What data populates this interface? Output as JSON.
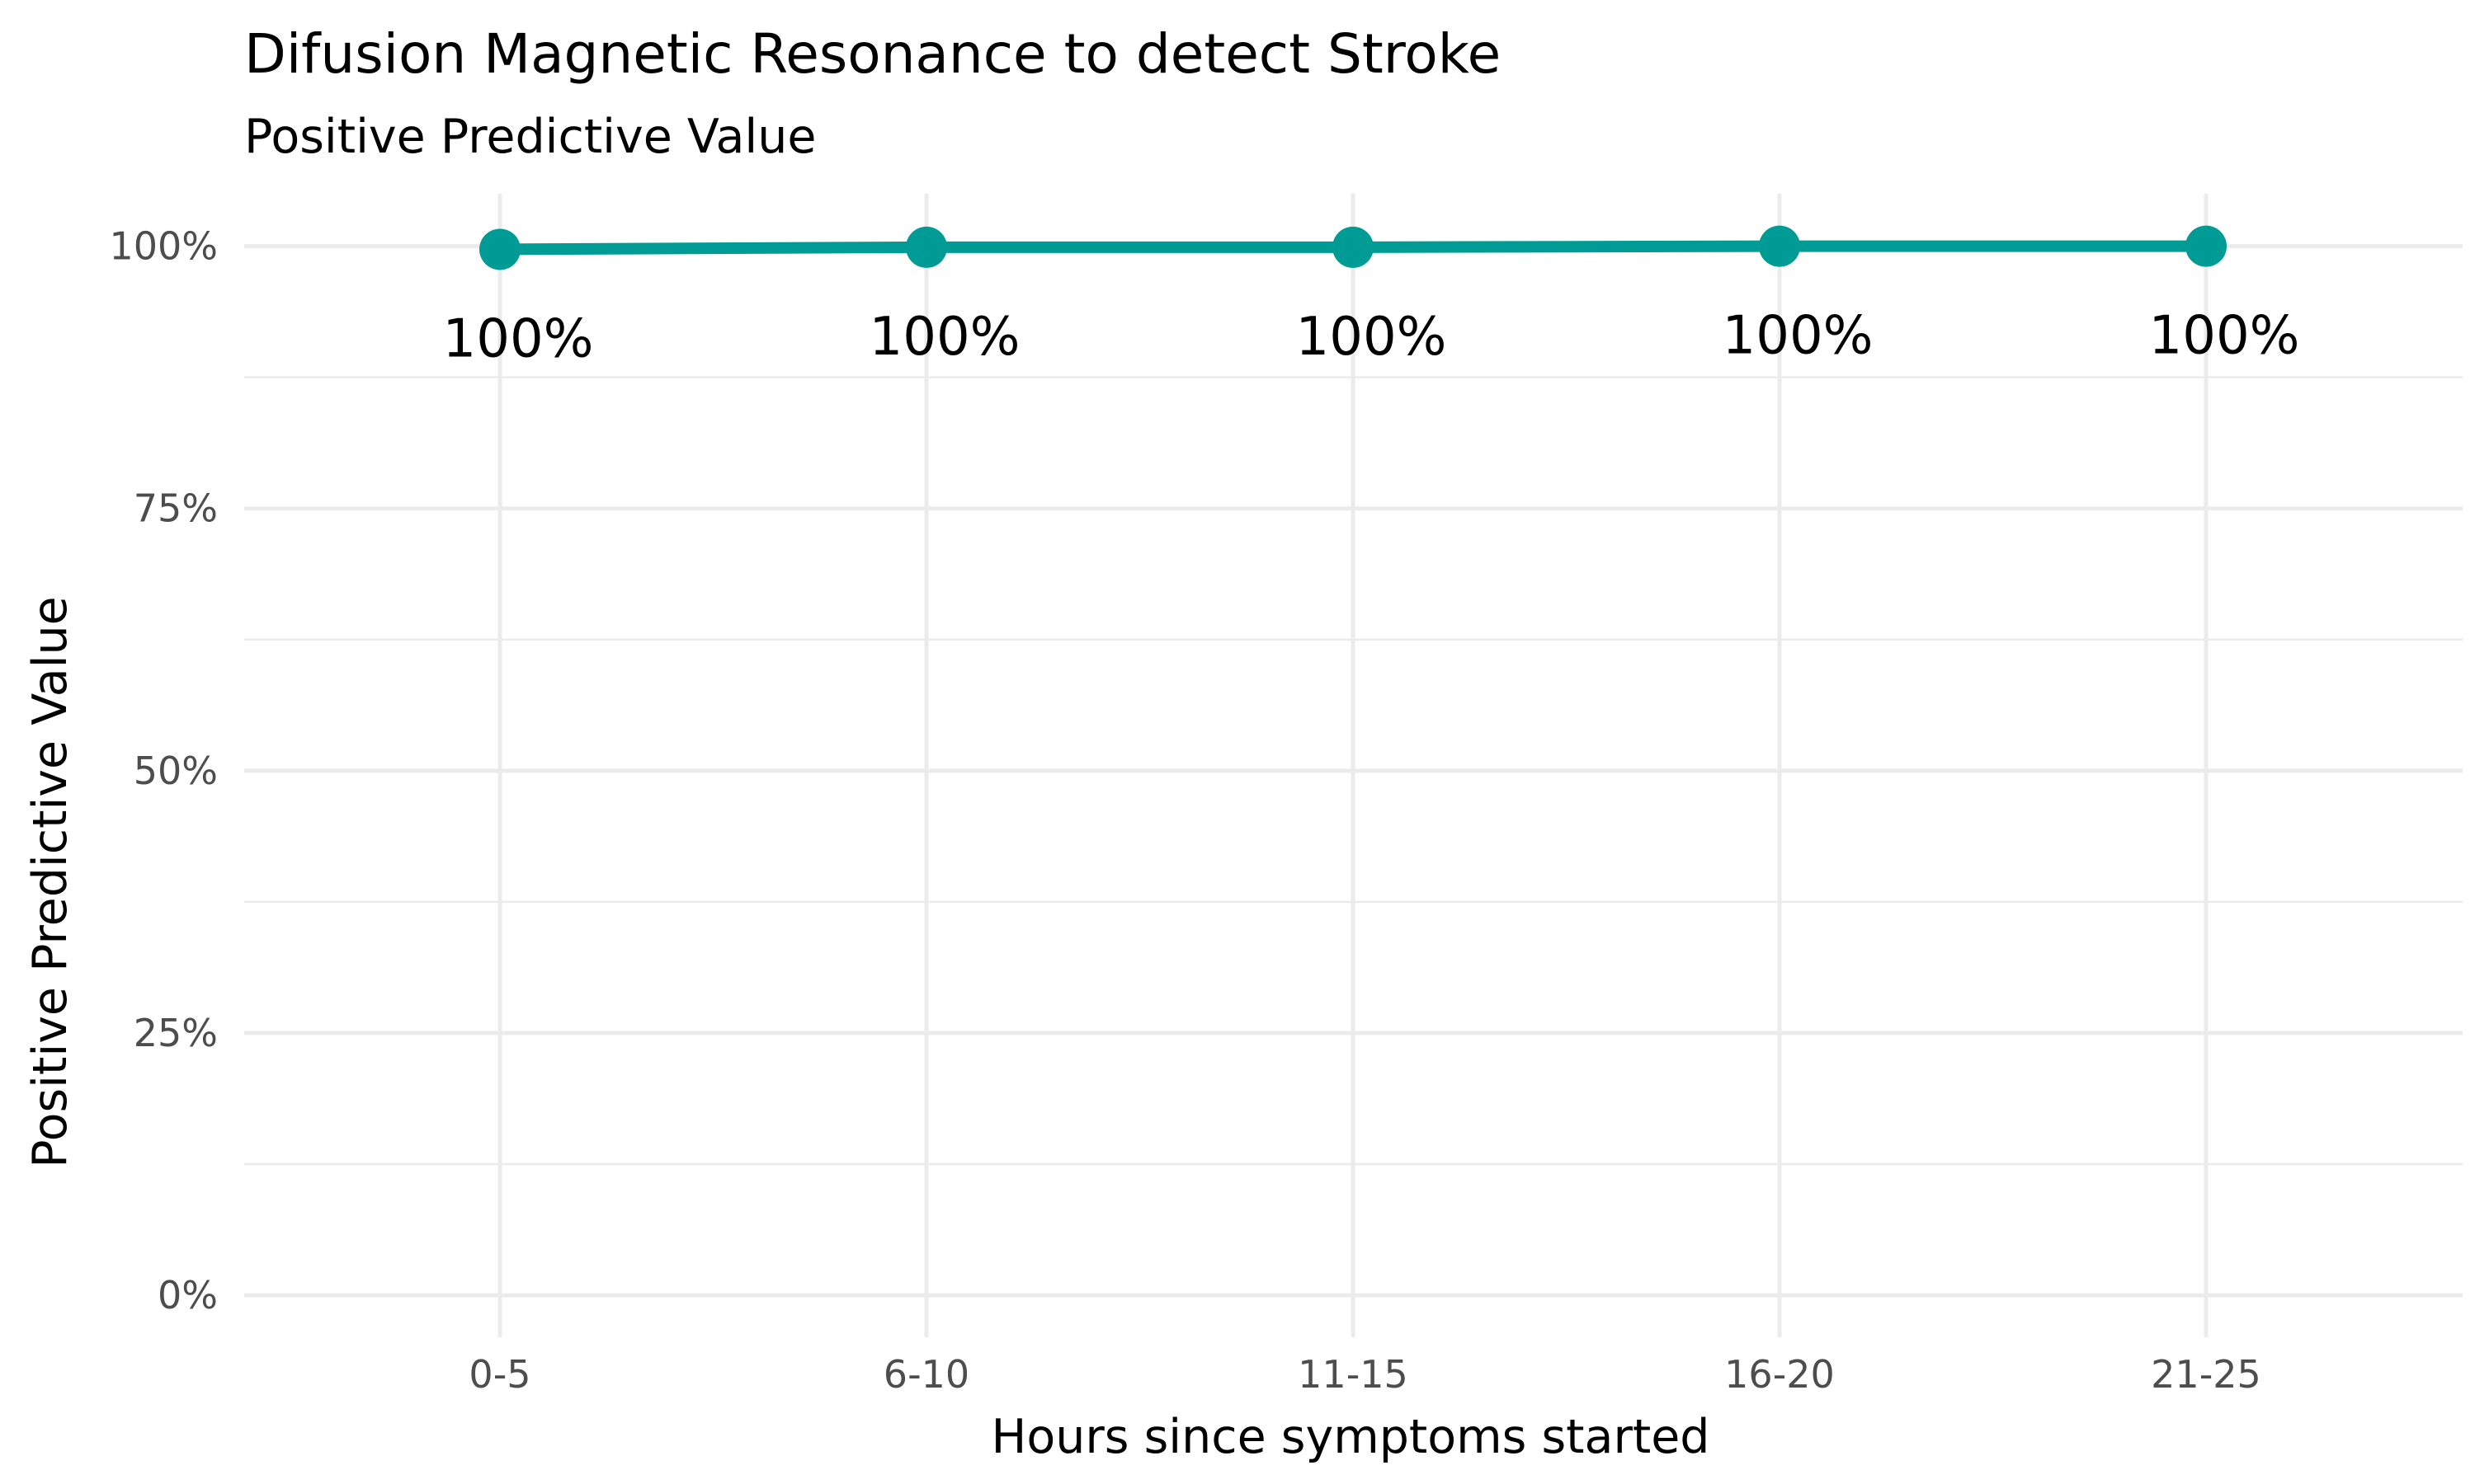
{
  "chart_data": {
    "type": "line",
    "title": "Difusion Magnetic Resonance to detect Stroke",
    "subtitle": "Positive Predictive Value",
    "xlabel": "Hours since symptoms started",
    "ylabel": "Positive Predictive Value",
    "categories": [
      "0-5",
      "6-10",
      "11-15",
      "16-20",
      "21-25"
    ],
    "series": [
      {
        "values": [
          0.997,
          0.999,
          0.999,
          1.0,
          1.0
        ],
        "labels": [
          "100%",
          "100%",
          "100%",
          "100%",
          "100%"
        ],
        "color": "#009b95"
      }
    ],
    "ylim": [
      -0.04,
      1.05
    ],
    "yticks": [
      0,
      0.25,
      0.5,
      0.75,
      1.0
    ],
    "ytick_labels": [
      "0%",
      "25%",
      "50%",
      "75%",
      "100%"
    ],
    "grid": true,
    "legend": "none"
  }
}
